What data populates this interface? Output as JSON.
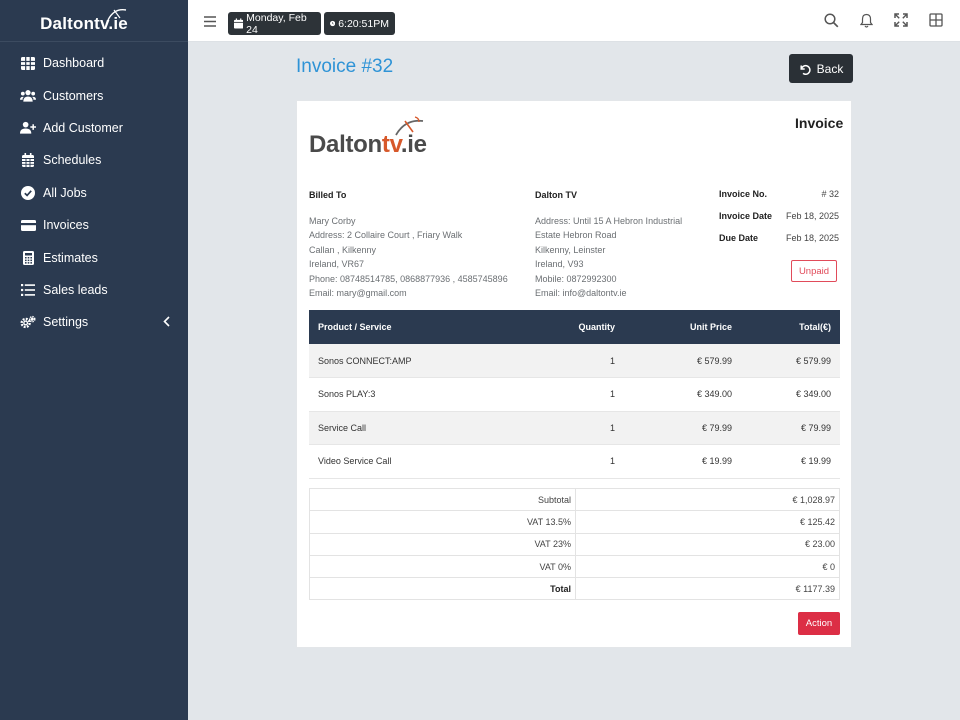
{
  "app": {
    "brand": "Daltontv.ie"
  },
  "sidebar": {
    "items": [
      {
        "label": "Dashboard",
        "icon": "grid-icon"
      },
      {
        "label": "Customers",
        "icon": "users-icon"
      },
      {
        "label": "Add Customer",
        "icon": "user-plus-icon"
      },
      {
        "label": "Schedules",
        "icon": "calendar-icon"
      },
      {
        "label": "All Jobs",
        "icon": "check-circle-icon"
      },
      {
        "label": "Invoices",
        "icon": "credit-card-icon"
      },
      {
        "label": "Estimates",
        "icon": "calculator-icon"
      },
      {
        "label": "Sales leads",
        "icon": "list-icon"
      },
      {
        "label": "Settings",
        "icon": "cogs-icon"
      }
    ]
  },
  "topbar": {
    "date": "Monday, Feb 24",
    "time": "6:20:51PM"
  },
  "page": {
    "title": "Invoice #32",
    "back_label": "Back"
  },
  "invoice": {
    "heading": "Invoice",
    "logo": {
      "main": "Dalton",
      "accent": "tv",
      "suffix": ".ie"
    },
    "billed_to": {
      "heading": "Billed To",
      "lines": [
        "Mary Corby",
        "Address: 2 Collaire Court , Friary Walk",
        "Callan , Kilkenny",
        "Ireland, VR67",
        "Phone: 08748514785, 0868877936 , 4585745896",
        "Email: mary@gmail.com"
      ]
    },
    "from": {
      "heading": "Dalton TV",
      "lines": [
        "Address: Until 15 A Hebron Industrial",
        "Estate Hebron Road",
        "Kilkenny, Leinster",
        "Ireland, V93",
        "Mobile: 0872992300",
        "Email: info@daltontv.ie"
      ]
    },
    "meta": [
      {
        "label": "Invoice No.",
        "value": "# 32"
      },
      {
        "label": "Invoice Date",
        "value": "Feb 18, 2025"
      },
      {
        "label": "Due Date",
        "value": "Feb 18, 2025"
      }
    ],
    "status": "Unpaid",
    "columns": [
      "Product / Service",
      "Quantity",
      "Unit Price",
      "Total(€)"
    ],
    "rows": [
      [
        "Sonos CONNECT:AMP",
        "1",
        "€ 579.99",
        "€ 579.99"
      ],
      [
        "Sonos PLAY:3",
        "1",
        "€ 349.00",
        "€ 349.00"
      ],
      [
        "Service Call",
        "1",
        "€ 79.99",
        "€ 79.99"
      ],
      [
        "Video Service Call",
        "1",
        "€ 19.99",
        "€ 19.99"
      ]
    ],
    "totals": [
      {
        "label": "Subtotal",
        "value": "€ 1,028.97"
      },
      {
        "label": "VAT 13.5%",
        "value": "€ 125.42"
      },
      {
        "label": "VAT 23%",
        "value": "€ 23.00"
      },
      {
        "label": "VAT 0%",
        "value": "€ 0"
      },
      {
        "label": "Total",
        "value": "€ 1177.39"
      }
    ],
    "action_label": "Action"
  },
  "colors": {
    "sidebar_bg": "#2b3a50",
    "title": "#2e93d6",
    "accent_red": "#dc2e45",
    "logo_orange": "#d7582a"
  }
}
